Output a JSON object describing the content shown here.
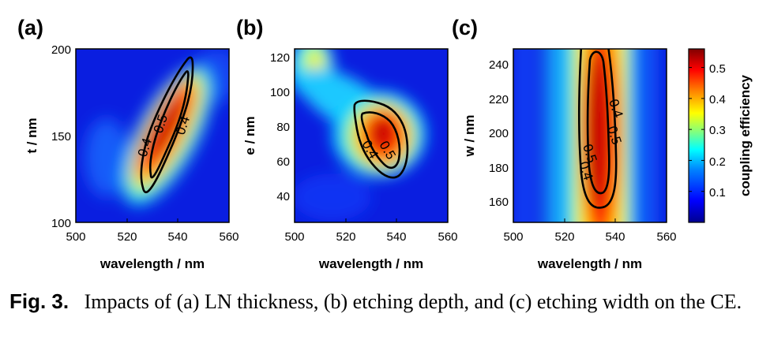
{
  "colormap": [
    "#00008f",
    "#0000ff",
    "#0080ff",
    "#00ffff",
    "#80ff80",
    "#ffff00",
    "#ff8000",
    "#ff0000",
    "#800000"
  ],
  "colorbar": {
    "label": "coupling efficiency",
    "ticks": [
      "0.1",
      "0.2",
      "0.3",
      "0.4",
      "0.5"
    ],
    "tick_values": [
      0.1,
      0.2,
      0.3,
      0.4,
      0.5
    ],
    "range": [
      0,
      0.56
    ]
  },
  "chart_data": [
    {
      "type": "heatmap",
      "panel": "(a)",
      "xlabel": "wavelength / nm",
      "ylabel": "t / nm",
      "xlim": [
        500,
        560
      ],
      "ylim": [
        100,
        200
      ],
      "xticks": [
        "500",
        "520",
        "540",
        "560"
      ],
      "yticks": [
        "100",
        "150",
        "200"
      ],
      "contour_levels": [
        0.4,
        0.5
      ],
      "contour_labels": [
        "0.4",
        "0.5",
        "0.4"
      ],
      "peak": {
        "wavelength": 536,
        "value": 0.55
      }
    },
    {
      "type": "heatmap",
      "panel": "(b)",
      "xlabel": "wavelength / nm",
      "ylabel": "e / nm",
      "xlim": [
        500,
        560
      ],
      "ylim": [
        25,
        125
      ],
      "xticks": [
        "500",
        "520",
        "540",
        "560"
      ],
      "yticks": [
        "40",
        "60",
        "80",
        "100",
        "120"
      ],
      "contour_levels": [
        0.4,
        0.5
      ],
      "contour_labels": [
        "0.4",
        "0.5"
      ],
      "peak": {
        "wavelength": 533,
        "e": 72,
        "value": 0.56
      }
    },
    {
      "type": "heatmap",
      "panel": "(c)",
      "xlabel": "wavelength / nm",
      "ylabel": "w / nm",
      "xlim": [
        500,
        560
      ],
      "ylim": [
        145,
        247
      ],
      "xticks": [
        "500",
        "520",
        "540",
        "560"
      ],
      "yticks": [
        "160",
        "180",
        "200",
        "220",
        "240"
      ],
      "contour_levels": [
        0.4,
        0.5
      ],
      "contour_labels": [
        "0.4",
        "0.5",
        "0.5",
        "0.4"
      ],
      "peak": {
        "wavelength": 534,
        "w": 200,
        "value": 0.56
      }
    }
  ],
  "caption": {
    "fig_num": "Fig. 3.",
    "text": "Impacts of (a) LN thickness, (b) etching depth, and (c) etching width on the CE."
  }
}
